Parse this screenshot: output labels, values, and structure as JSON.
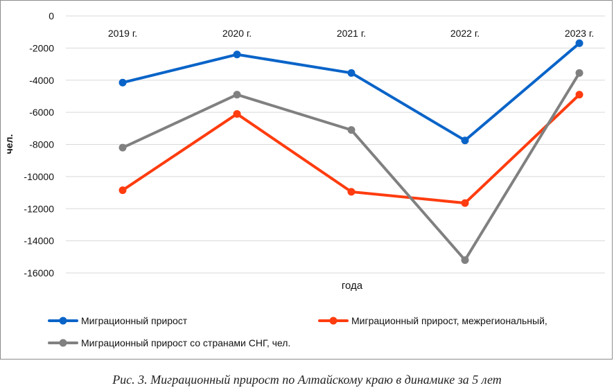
{
  "caption": "Рис. 3. Миграционный прирост по Алтайскому краю в динамике за 5 лет",
  "chart_data": {
    "type": "line",
    "title": "",
    "xlabel": "года",
    "ylabel": "чел.",
    "categories": [
      "2019 г.",
      "2020 г.",
      "2021 г.",
      "2022 г.",
      "2023 г."
    ],
    "ylim": [
      -16000,
      0
    ],
    "yticks": [
      0,
      -2000,
      -4000,
      -6000,
      -8000,
      -10000,
      -12000,
      -14000,
      -16000
    ],
    "grid": true,
    "legend_position": "bottom",
    "series": [
      {
        "name": "Миграционный прирост",
        "color": "#0a64c8",
        "values": [
          -4150,
          -2400,
          -3550,
          -7750,
          -1700
        ]
      },
      {
        "name": "Миграционный прирост, межрегиональный,",
        "color": "#ff3c0f",
        "values": [
          -10850,
          -6100,
          -10950,
          -11650,
          -4900
        ]
      },
      {
        "name": "Миграционный прирост со странами СНГ, чел.",
        "color": "#808080",
        "values": [
          -8200,
          -4900,
          -7100,
          -15200,
          -3550
        ]
      }
    ]
  }
}
